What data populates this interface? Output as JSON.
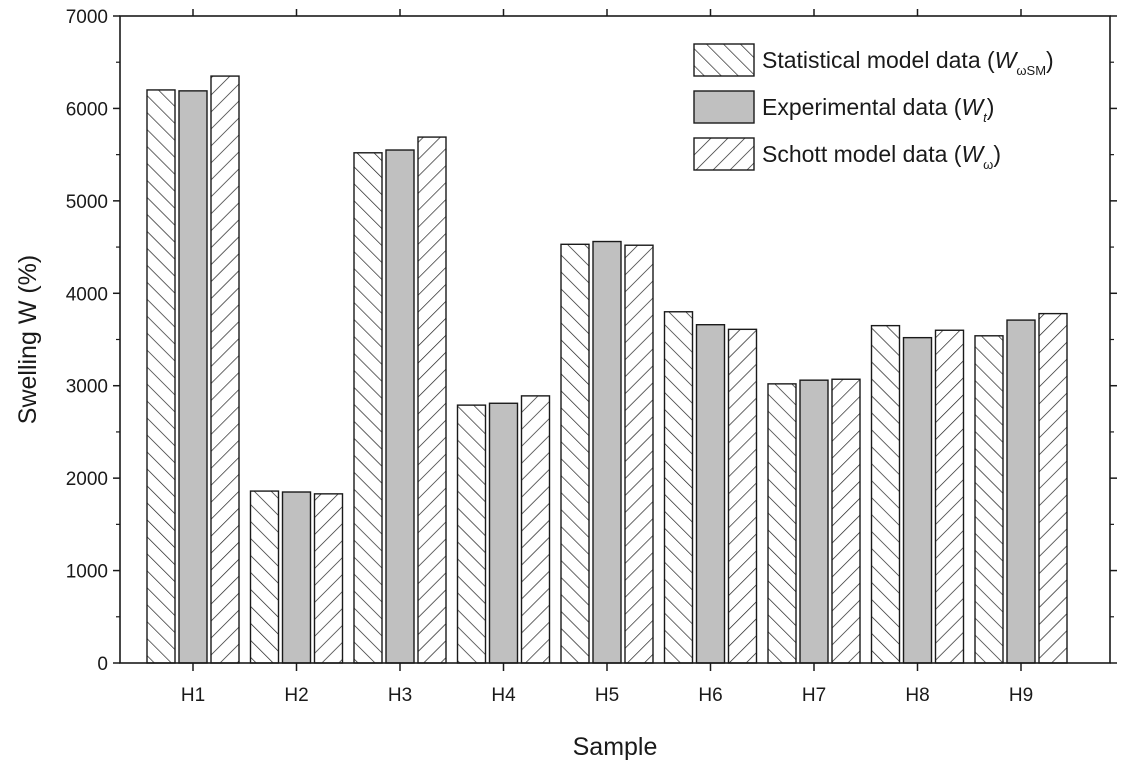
{
  "chart_data": {
    "type": "bar",
    "title": "",
    "xlabel": "Sample",
    "ylabel": "Swelling W (%)",
    "ylim": [
      0,
      7000
    ],
    "yticks": [
      0,
      1000,
      2000,
      3000,
      4000,
      5000,
      6000,
      7000
    ],
    "categories": [
      "H1",
      "H2",
      "H3",
      "H4",
      "H5",
      "H6",
      "H7",
      "H8",
      "H9"
    ],
    "legend_position": "top-right",
    "grid": false,
    "series": [
      {
        "key": "sm",
        "name": "Statistical model data (W",
        "name_sub": "ωSM",
        "name_suffix": ")",
        "pattern": "back-diagonal hatch",
        "values": [
          6200,
          1860,
          5520,
          2790,
          4530,
          3800,
          3020,
          3650,
          3540
        ]
      },
      {
        "key": "exp",
        "name": "Experimental data (W",
        "name_sub": "t",
        "name_suffix": ")",
        "pattern": "solid gray",
        "color": "#c0c0c0",
        "values": [
          6190,
          1850,
          5550,
          2810,
          4560,
          3660,
          3060,
          3520,
          3710
        ]
      },
      {
        "key": "schott",
        "name": "Schott model data (W",
        "name_sub": "ω",
        "name_suffix": ")",
        "pattern": "forward-diagonal hatch",
        "values": [
          6350,
          1830,
          5690,
          2890,
          4520,
          3610,
          3070,
          3600,
          3780
        ]
      }
    ]
  }
}
